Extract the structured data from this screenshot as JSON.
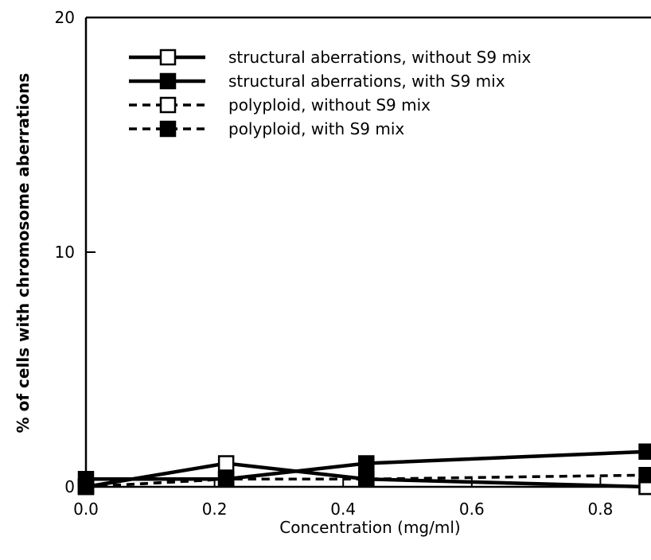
{
  "chart_data": {
    "type": "line",
    "xlabel": "Concentration (mg/ml)",
    "ylabel": "% of cells with chromosome aberrations",
    "xlim": [
      0.0,
      0.87
    ],
    "ylim": [
      0,
      20
    ],
    "xticks": [
      0.0,
      0.2,
      0.4,
      0.6,
      0.8
    ],
    "xtick_labels": [
      "0.0",
      "0.2",
      "0.4",
      "0.6",
      "0.8"
    ],
    "yticks": [
      0,
      10,
      20
    ],
    "ytick_labels": [
      "0",
      "10",
      "20"
    ],
    "legend_position": "top-left",
    "series": [
      {
        "name": "structural aberrations, without S9 mix",
        "x": [
          0.0,
          0.218,
          0.436,
          0.872
        ],
        "y": [
          0.0,
          1.0,
          0.33,
          0.0
        ],
        "line": "solid",
        "marker": "open-square"
      },
      {
        "name": "structural aberrations, with S9 mix",
        "x": [
          0.0,
          0.218,
          0.436,
          0.872
        ],
        "y": [
          0.33,
          0.33,
          1.0,
          1.5
        ],
        "line": "solid",
        "marker": "filled-square"
      },
      {
        "name": "polyploid, without S9 mix",
        "x": [
          0.0,
          0.218,
          0.436,
          0.872
        ],
        "y": [
          0.0,
          0.33,
          0.33,
          0.0
        ],
        "line": "dashed",
        "marker": "open-square"
      },
      {
        "name": "polyploid, with S9 mix",
        "x": [
          0.0,
          0.218,
          0.436,
          0.872
        ],
        "y": [
          0.0,
          0.33,
          0.33,
          0.5
        ],
        "line": "dashed",
        "marker": "filled-square"
      }
    ]
  }
}
